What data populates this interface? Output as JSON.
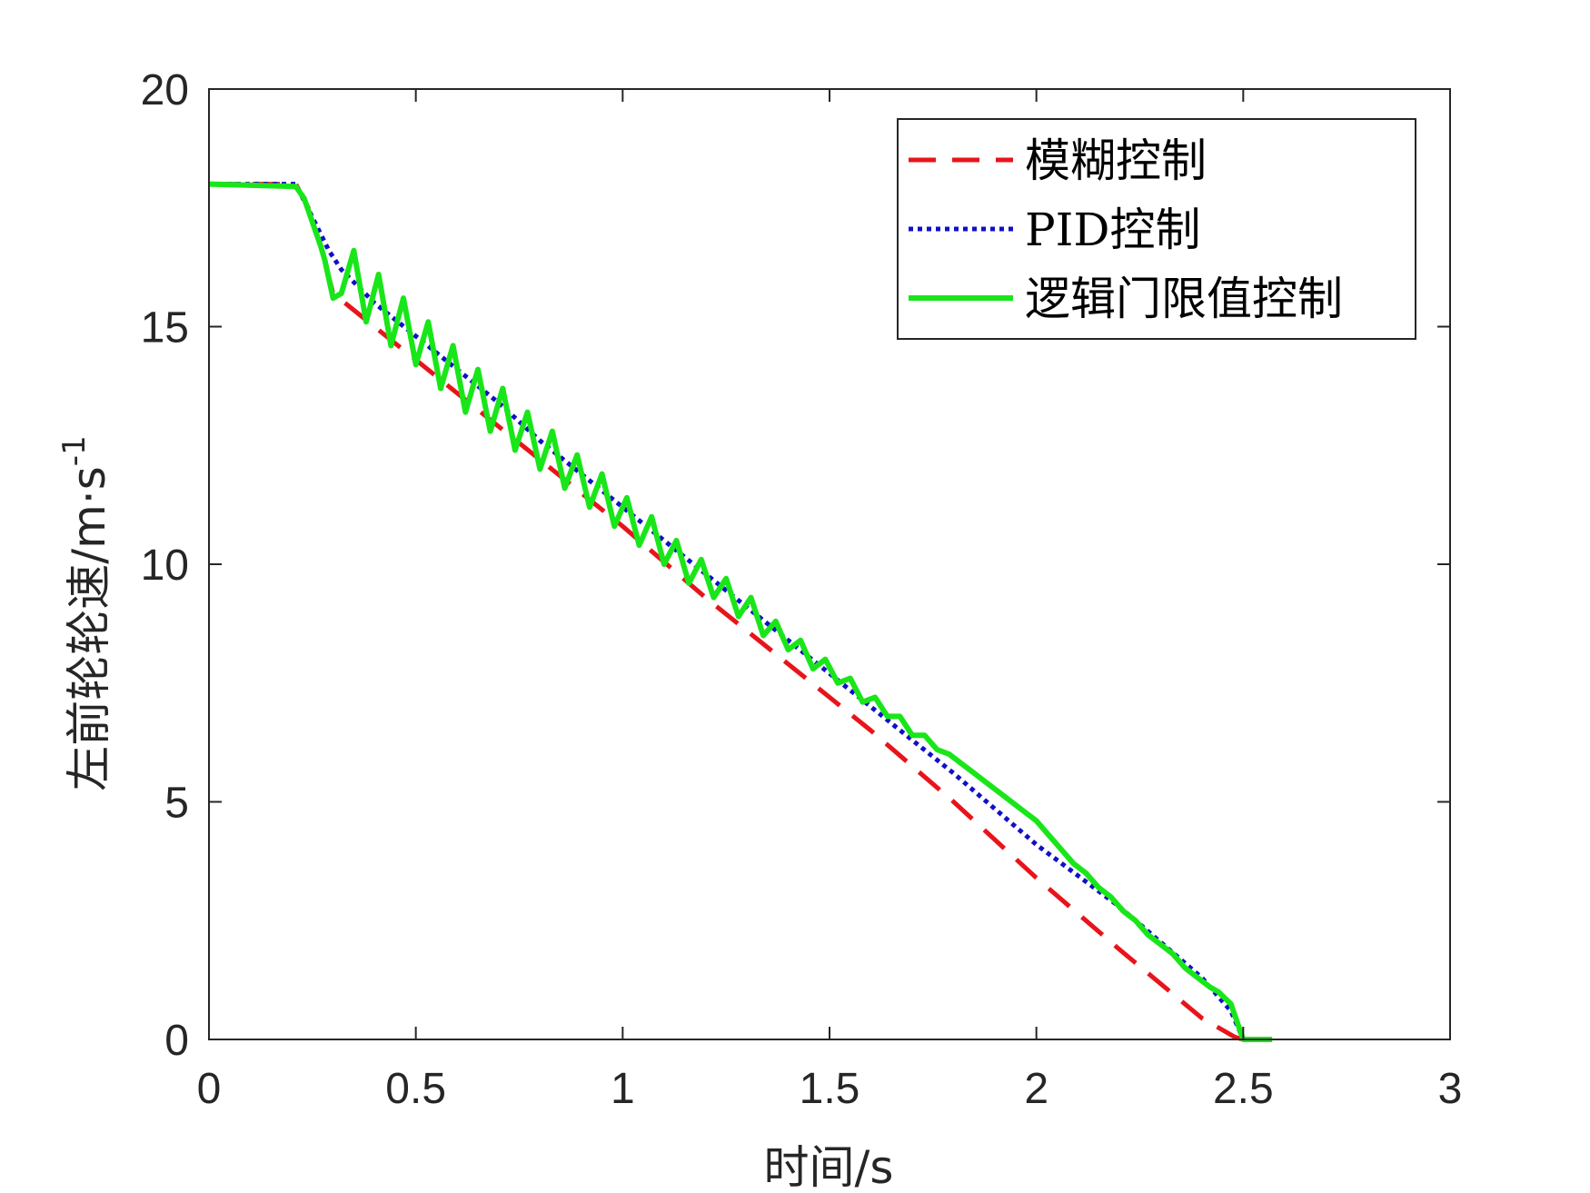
{
  "chart_data": {
    "type": "line",
    "title": "",
    "xlabel": "时间/s",
    "ylabel": "左前轮轮速/m·s",
    "ylabel_superscript": "-1",
    "xlim": [
      0,
      3
    ],
    "ylim": [
      0,
      20
    ],
    "xticks": [
      0,
      0.5,
      1,
      1.5,
      2,
      2.5,
      3
    ],
    "xtick_labels": [
      "0",
      "0.5",
      "1",
      "1.5",
      "2",
      "2.5",
      "3"
    ],
    "yticks": [
      0,
      5,
      10,
      15,
      20
    ],
    "ytick_labels": [
      "0",
      "5",
      "10",
      "15",
      "20"
    ],
    "grid": false,
    "legend_position": "top-right",
    "series": [
      {
        "name": "模糊控制",
        "color": "#e8141b",
        "style": "dashed",
        "x": [
          0,
          0.21,
          0.24,
          0.27,
          0.3,
          0.4,
          0.5,
          0.6,
          0.7,
          0.8,
          0.9,
          1.0,
          1.2,
          1.4,
          1.6,
          1.8,
          2.0,
          2.2,
          2.4,
          2.48,
          2.5,
          2.55
        ],
        "y": [
          18.0,
          18.0,
          17.5,
          16.7,
          15.7,
          15.0,
          14.3,
          13.6,
          12.9,
          12.2,
          11.5,
          10.8,
          9.3,
          7.9,
          6.5,
          5.0,
          3.4,
          1.9,
          0.45,
          0.05,
          0.0,
          0.0
        ]
      },
      {
        "name": "PID控制",
        "color": "#1010c8",
        "style": "dotted",
        "x": [
          0,
          0.21,
          0.25,
          0.29,
          0.32,
          0.4,
          0.5,
          0.6,
          0.7,
          0.8,
          0.9,
          1.0,
          1.2,
          1.4,
          1.6,
          1.8,
          2.0,
          2.2,
          2.4,
          2.47,
          2.5,
          2.55
        ],
        "y": [
          18.0,
          18.0,
          17.3,
          16.6,
          16.2,
          15.5,
          14.8,
          14.1,
          13.4,
          12.6,
          11.9,
          11.2,
          9.8,
          8.4,
          7.0,
          5.6,
          4.1,
          2.8,
          1.3,
          0.6,
          0.0,
          0.0
        ]
      },
      {
        "name": "逻辑门限值控制",
        "color": "#19e619",
        "style": "solid",
        "x": [
          0,
          0.21,
          0.23,
          0.25,
          0.27,
          0.28,
          0.3,
          0.32,
          0.35,
          0.38,
          0.41,
          0.44,
          0.47,
          0.5,
          0.53,
          0.56,
          0.59,
          0.62,
          0.65,
          0.68,
          0.71,
          0.74,
          0.77,
          0.8,
          0.83,
          0.86,
          0.89,
          0.92,
          0.95,
          0.98,
          1.01,
          1.04,
          1.07,
          1.1,
          1.13,
          1.16,
          1.19,
          1.22,
          1.25,
          1.28,
          1.31,
          1.34,
          1.37,
          1.4,
          1.43,
          1.46,
          1.49,
          1.52,
          1.55,
          1.58,
          1.61,
          1.64,
          1.67,
          1.7,
          1.73,
          1.76,
          1.79,
          1.82,
          1.85,
          1.88,
          1.91,
          1.94,
          1.97,
          2.0,
          2.03,
          2.06,
          2.09,
          2.12,
          2.15,
          2.18,
          2.21,
          2.24,
          2.27,
          2.3,
          2.33,
          2.36,
          2.39,
          2.42,
          2.44,
          2.47,
          2.5,
          2.52,
          2.55,
          2.57
        ],
        "y": [
          18.0,
          17.95,
          17.7,
          17.2,
          16.7,
          16.4,
          15.6,
          15.7,
          16.6,
          15.1,
          16.1,
          14.6,
          15.6,
          14.2,
          15.1,
          13.7,
          14.6,
          13.2,
          14.1,
          12.8,
          13.7,
          12.4,
          13.2,
          12.0,
          12.8,
          11.6,
          12.3,
          11.2,
          11.9,
          10.8,
          11.4,
          10.4,
          11.0,
          10.0,
          10.5,
          9.6,
          10.1,
          9.3,
          9.7,
          8.9,
          9.3,
          8.5,
          8.8,
          8.2,
          8.4,
          7.8,
          8.0,
          7.5,
          7.6,
          7.1,
          7.2,
          6.8,
          6.8,
          6.4,
          6.4,
          6.1,
          6.0,
          5.8,
          5.6,
          5.4,
          5.2,
          5.0,
          4.8,
          4.6,
          4.3,
          4.0,
          3.7,
          3.5,
          3.2,
          3.0,
          2.7,
          2.5,
          2.2,
          2.0,
          1.8,
          1.5,
          1.3,
          1.1,
          1.0,
          0.75,
          0.0,
          0.0,
          0.0,
          0.0
        ]
      }
    ]
  }
}
